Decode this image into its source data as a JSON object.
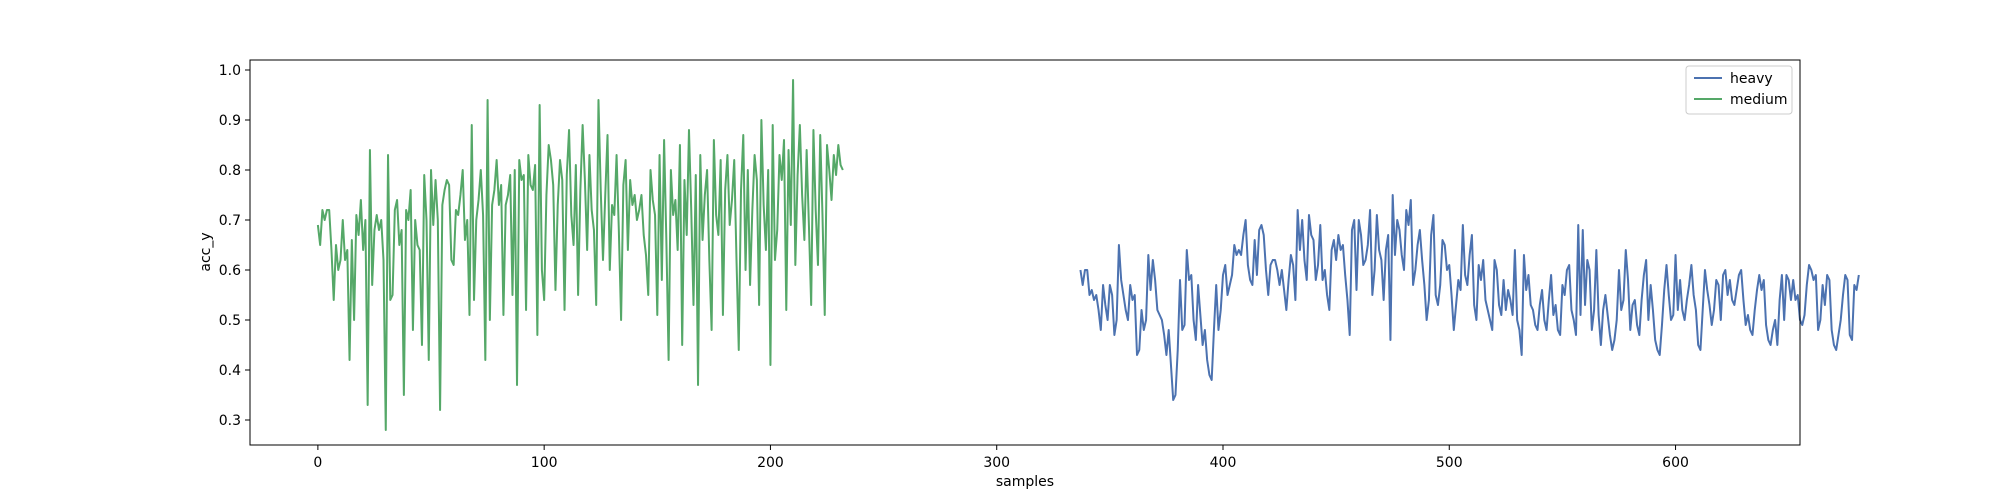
{
  "chart_data": {
    "type": "line",
    "title": "",
    "xlabel": "samples",
    "ylabel": "acc_y",
    "xlim": [
      -30,
      655
    ],
    "ylim": [
      0.25,
      1.02
    ],
    "xticks": [
      0,
      100,
      200,
      300,
      400,
      500,
      600
    ],
    "yticks": [
      0.3,
      0.4,
      0.5,
      0.6,
      0.7,
      0.8,
      0.9,
      1.0
    ],
    "legend_position": "top-right",
    "grid": false,
    "series": [
      {
        "name": "heavy",
        "color": "#4c72b0",
        "x_start": 337,
        "values": [
          0.6,
          0.57,
          0.6,
          0.6,
          0.55,
          0.56,
          0.54,
          0.55,
          0.52,
          0.48,
          0.57,
          0.53,
          0.5,
          0.57,
          0.55,
          0.47,
          0.5,
          0.65,
          0.58,
          0.55,
          0.52,
          0.5,
          0.57,
          0.54,
          0.55,
          0.43,
          0.44,
          0.52,
          0.48,
          0.5,
          0.63,
          0.56,
          0.62,
          0.58,
          0.52,
          0.51,
          0.5,
          0.47,
          0.43,
          0.48,
          0.41,
          0.34,
          0.35,
          0.44,
          0.58,
          0.48,
          0.49,
          0.64,
          0.58,
          0.59,
          0.5,
          0.46,
          0.57,
          0.51,
          0.45,
          0.48,
          0.42,
          0.39,
          0.38,
          0.48,
          0.57,
          0.48,
          0.52,
          0.59,
          0.61,
          0.55,
          0.57,
          0.59,
          0.65,
          0.63,
          0.64,
          0.63,
          0.67,
          0.7,
          0.61,
          0.58,
          0.57,
          0.66,
          0.59,
          0.68,
          0.69,
          0.67,
          0.6,
          0.55,
          0.61,
          0.62,
          0.62,
          0.6,
          0.57,
          0.6,
          0.56,
          0.52,
          0.58,
          0.63,
          0.61,
          0.54,
          0.72,
          0.64,
          0.7,
          0.62,
          0.58,
          0.71,
          0.67,
          0.66,
          0.58,
          0.61,
          0.69,
          0.58,
          0.6,
          0.55,
          0.52,
          0.64,
          0.66,
          0.62,
          0.67,
          0.64,
          0.65,
          0.59,
          0.54,
          0.47,
          0.68,
          0.7,
          0.56,
          0.7,
          0.67,
          0.61,
          0.62,
          0.65,
          0.72,
          0.55,
          0.6,
          0.71,
          0.64,
          0.62,
          0.54,
          0.64,
          0.67,
          0.46,
          0.75,
          0.63,
          0.7,
          0.68,
          0.63,
          0.6,
          0.72,
          0.69,
          0.74,
          0.57,
          0.6,
          0.65,
          0.68,
          0.62,
          0.57,
          0.5,
          0.54,
          0.67,
          0.71,
          0.55,
          0.53,
          0.57,
          0.66,
          0.65,
          0.6,
          0.61,
          0.55,
          0.48,
          0.53,
          0.58,
          0.56,
          0.69,
          0.59,
          0.57,
          0.63,
          0.67,
          0.53,
          0.5,
          0.61,
          0.58,
          0.62,
          0.54,
          0.52,
          0.5,
          0.48,
          0.62,
          0.6,
          0.53,
          0.51,
          0.58,
          0.52,
          0.56,
          0.54,
          0.51,
          0.64,
          0.5,
          0.48,
          0.43,
          0.63,
          0.56,
          0.59,
          0.53,
          0.52,
          0.49,
          0.48,
          0.53,
          0.56,
          0.5,
          0.48,
          0.54,
          0.59,
          0.51,
          0.53,
          0.48,
          0.47,
          0.57,
          0.55,
          0.6,
          0.61,
          0.52,
          0.5,
          0.47,
          0.69,
          0.51,
          0.68,
          0.53,
          0.62,
          0.6,
          0.48,
          0.52,
          0.64,
          0.51,
          0.45,
          0.52,
          0.55,
          0.51,
          0.47,
          0.44,
          0.46,
          0.5,
          0.6,
          0.52,
          0.54,
          0.64,
          0.58,
          0.48,
          0.53,
          0.54,
          0.49,
          0.47,
          0.54,
          0.59,
          0.62,
          0.5,
          0.57,
          0.52,
          0.46,
          0.44,
          0.43,
          0.49,
          0.56,
          0.61,
          0.55,
          0.5,
          0.51,
          0.63,
          0.52,
          0.58,
          0.52,
          0.5,
          0.54,
          0.57,
          0.61,
          0.55,
          0.52,
          0.45,
          0.44,
          0.52,
          0.6,
          0.56,
          0.53,
          0.49,
          0.52,
          0.58,
          0.57,
          0.5,
          0.59,
          0.6,
          0.55,
          0.58,
          0.54,
          0.53,
          0.56,
          0.59,
          0.6,
          0.54,
          0.49,
          0.51,
          0.48,
          0.47,
          0.52,
          0.56,
          0.59,
          0.56,
          0.58,
          0.49,
          0.46,
          0.45,
          0.48,
          0.5,
          0.45,
          0.54,
          0.59,
          0.5,
          0.59,
          0.58,
          0.54,
          0.58,
          0.54,
          0.55,
          0.5,
          0.49,
          0.51,
          0.57,
          0.61,
          0.6,
          0.58,
          0.59,
          0.48,
          0.5,
          0.57,
          0.53,
          0.59,
          0.58,
          0.48,
          0.45,
          0.44,
          0.47,
          0.5,
          0.55,
          0.59,
          0.58,
          0.47,
          0.46,
          0.57,
          0.56,
          0.59
        ]
      },
      {
        "name": "medium",
        "color": "#55a868",
        "x_start": 0,
        "values": [
          0.69,
          0.65,
          0.72,
          0.7,
          0.72,
          0.72,
          0.64,
          0.54,
          0.65,
          0.6,
          0.62,
          0.7,
          0.62,
          0.64,
          0.42,
          0.66,
          0.5,
          0.71,
          0.67,
          0.74,
          0.64,
          0.7,
          0.33,
          0.84,
          0.57,
          0.68,
          0.71,
          0.68,
          0.7,
          0.62,
          0.28,
          0.83,
          0.54,
          0.55,
          0.72,
          0.74,
          0.65,
          0.68,
          0.35,
          0.72,
          0.7,
          0.76,
          0.48,
          0.7,
          0.65,
          0.64,
          0.45,
          0.79,
          0.7,
          0.42,
          0.8,
          0.69,
          0.78,
          0.7,
          0.32,
          0.73,
          0.76,
          0.78,
          0.77,
          0.62,
          0.61,
          0.72,
          0.71,
          0.75,
          0.8,
          0.66,
          0.7,
          0.51,
          0.89,
          0.54,
          0.7,
          0.74,
          0.8,
          0.71,
          0.42,
          0.94,
          0.5,
          0.73,
          0.76,
          0.82,
          0.73,
          0.77,
          0.51,
          0.73,
          0.75,
          0.79,
          0.55,
          0.8,
          0.37,
          0.82,
          0.78,
          0.79,
          0.52,
          0.83,
          0.77,
          0.76,
          0.81,
          0.47,
          0.93,
          0.6,
          0.54,
          0.75,
          0.85,
          0.82,
          0.77,
          0.56,
          0.73,
          0.82,
          0.78,
          0.52,
          0.79,
          0.88,
          0.71,
          0.65,
          0.81,
          0.55,
          0.76,
          0.89,
          0.78,
          0.64,
          0.83,
          0.72,
          0.68,
          0.53,
          0.94,
          0.76,
          0.62,
          0.75,
          0.87,
          0.6,
          0.73,
          0.71,
          0.83,
          0.68,
          0.5,
          0.77,
          0.82,
          0.64,
          0.78,
          0.73,
          0.75,
          0.7,
          0.72,
          0.75,
          0.67,
          0.63,
          0.55,
          0.8,
          0.74,
          0.71,
          0.51,
          0.83,
          0.58,
          0.86,
          0.66,
          0.42,
          0.8,
          0.71,
          0.74,
          0.64,
          0.85,
          0.45,
          0.78,
          0.67,
          0.88,
          0.72,
          0.53,
          0.79,
          0.37,
          0.83,
          0.66,
          0.75,
          0.8,
          0.62,
          0.48,
          0.86,
          0.71,
          0.67,
          0.82,
          0.51,
          0.76,
          0.83,
          0.69,
          0.74,
          0.82,
          0.62,
          0.44,
          0.76,
          0.87,
          0.6,
          0.8,
          0.57,
          0.72,
          0.83,
          0.78,
          0.53,
          0.9,
          0.73,
          0.64,
          0.8,
          0.41,
          0.89,
          0.62,
          0.68,
          0.83,
          0.78,
          0.86,
          0.52,
          0.84,
          0.69,
          0.98,
          0.61,
          0.79,
          0.89,
          0.75,
          0.66,
          0.84,
          0.69,
          0.53,
          0.88,
          0.72,
          0.61,
          0.87,
          0.71,
          0.51,
          0.85,
          0.8,
          0.74,
          0.83,
          0.79,
          0.85,
          0.81,
          0.8
        ]
      }
    ]
  }
}
